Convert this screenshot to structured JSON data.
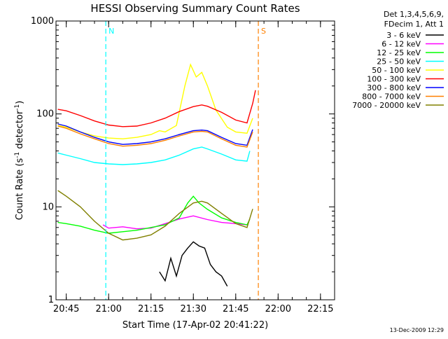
{
  "chart_data": {
    "type": "line",
    "title": "HESSI Observing Summary Count Rates",
    "xlabel": "Start Time (17-Apr-02 20:41:22)",
    "ylabel_parts": [
      "Count Rate (s",
      "-1",
      " detector",
      "-1",
      ")"
    ],
    "y_scale": "log",
    "ylim": [
      1,
      1000
    ],
    "y_ticks": [
      {
        "value": 1,
        "label": "1"
      },
      {
        "value": 10,
        "label": "10"
      },
      {
        "value": 100,
        "label": "100"
      },
      {
        "value": 1000,
        "label": "1000"
      }
    ],
    "xlim": [
      "20:41:22",
      "22:20:00"
    ],
    "x_ticks": [
      {
        "time": "20:45",
        "label": "20:45"
      },
      {
        "time": "21:00",
        "label": "21:00"
      },
      {
        "time": "21:15",
        "label": "21:15"
      },
      {
        "time": "21:30",
        "label": "21:30"
      },
      {
        "time": "21:45",
        "label": "21:45"
      },
      {
        "time": "22:00",
        "label": "22:00"
      },
      {
        "time": "22:15",
        "label": "22:15"
      }
    ],
    "legend_header": [
      "Det 1,3,4,5,6,9,",
      "FDecim 1, Att 1"
    ],
    "legend_placement": "right, outside plot",
    "series": [
      {
        "name": "3 - 6 keV",
        "color": "#000000",
        "points": [
          [
            "21:18",
            2.0
          ],
          [
            "21:20",
            1.6
          ],
          [
            "21:22",
            2.8
          ],
          [
            "21:24",
            1.8
          ],
          [
            "21:26",
            3.0
          ],
          [
            "21:28",
            3.6
          ],
          [
            "21:30",
            4.2
          ],
          [
            "21:32",
            3.8
          ],
          [
            "21:34",
            3.6
          ],
          [
            "21:36",
            2.4
          ],
          [
            "21:38",
            2.0
          ],
          [
            "21:40",
            1.8
          ],
          [
            "21:42",
            1.4
          ]
        ]
      },
      {
        "name": "6 - 12 keV",
        "color": "#ff00ff",
        "points": [
          [
            "20:58",
            6.4
          ],
          [
            "21:00",
            5.9
          ],
          [
            "21:05",
            6.1
          ],
          [
            "21:10",
            5.8
          ],
          [
            "21:15",
            5.9
          ],
          [
            "21:20",
            6.6
          ],
          [
            "21:25",
            7.4
          ],
          [
            "21:30",
            8.0
          ],
          [
            "21:35",
            7.3
          ],
          [
            "21:40",
            6.8
          ],
          [
            "21:45",
            6.6
          ],
          [
            "21:49",
            6.4
          ]
        ]
      },
      {
        "name": "12 - 25 keV",
        "color": "#00ff00",
        "points": [
          [
            "20:42",
            6.8
          ],
          [
            "20:45",
            6.6
          ],
          [
            "20:50",
            6.2
          ],
          [
            "20:55",
            5.6
          ],
          [
            "21:00",
            5.2
          ],
          [
            "21:05",
            5.4
          ],
          [
            "21:10",
            5.6
          ],
          [
            "21:15",
            6.0
          ],
          [
            "21:20",
            6.4
          ],
          [
            "21:25",
            7.6
          ],
          [
            "21:28",
            11
          ],
          [
            "21:30",
            13
          ],
          [
            "21:32",
            11
          ],
          [
            "21:35",
            9.4
          ],
          [
            "21:40",
            7.6
          ],
          [
            "21:45",
            6.8
          ],
          [
            "21:49",
            6.4
          ],
          [
            "21:50",
            7.4
          ]
        ]
      },
      {
        "name": "25 - 50 keV",
        "color": "#00ffff",
        "points": [
          [
            "20:42",
            38
          ],
          [
            "20:45",
            36
          ],
          [
            "20:50",
            33
          ],
          [
            "20:55",
            30
          ],
          [
            "21:00",
            29
          ],
          [
            "21:05",
            28.5
          ],
          [
            "21:10",
            29
          ],
          [
            "21:15",
            30
          ],
          [
            "21:20",
            32
          ],
          [
            "21:25",
            36
          ],
          [
            "21:30",
            42
          ],
          [
            "21:33",
            44
          ],
          [
            "21:35",
            42
          ],
          [
            "21:40",
            37
          ],
          [
            "21:45",
            32
          ],
          [
            "21:49",
            31
          ],
          [
            "21:50",
            40
          ]
        ]
      },
      {
        "name": "50 - 100 keV",
        "color": "#ffff00",
        "points": [
          [
            "20:42",
            75
          ],
          [
            "20:45",
            72
          ],
          [
            "20:50",
            64
          ],
          [
            "20:55",
            58
          ],
          [
            "21:00",
            55
          ],
          [
            "21:05",
            54
          ],
          [
            "21:10",
            56
          ],
          [
            "21:15",
            60
          ],
          [
            "21:18",
            66
          ],
          [
            "21:20",
            64
          ],
          [
            "21:24",
            75
          ],
          [
            "21:27",
            200
          ],
          [
            "21:29",
            340
          ],
          [
            "21:31",
            250
          ],
          [
            "21:33",
            280
          ],
          [
            "21:35",
            200
          ],
          [
            "21:38",
            110
          ],
          [
            "21:42",
            72
          ],
          [
            "21:45",
            64
          ],
          [
            "21:49",
            62
          ],
          [
            "21:51",
            90
          ]
        ]
      },
      {
        "name": "100 - 300 keV",
        "color": "#ff0000",
        "points": [
          [
            "20:42",
            112
          ],
          [
            "20:45",
            108
          ],
          [
            "20:50",
            96
          ],
          [
            "20:55",
            84
          ],
          [
            "21:00",
            76
          ],
          [
            "21:05",
            73
          ],
          [
            "21:10",
            74
          ],
          [
            "21:15",
            80
          ],
          [
            "21:20",
            90
          ],
          [
            "21:25",
            106
          ],
          [
            "21:30",
            120
          ],
          [
            "21:33",
            125
          ],
          [
            "21:35",
            121
          ],
          [
            "21:40",
            104
          ],
          [
            "21:45",
            86
          ],
          [
            "21:49",
            80
          ],
          [
            "21:51",
            130
          ],
          [
            "21:52",
            180
          ]
        ]
      },
      {
        "name": "300 - 800 keV",
        "color": "#0000ff",
        "points": [
          [
            "20:42",
            78
          ],
          [
            "20:45",
            74
          ],
          [
            "20:50",
            64
          ],
          [
            "20:55",
            56
          ],
          [
            "21:00",
            50
          ],
          [
            "21:05",
            47
          ],
          [
            "21:10",
            48
          ],
          [
            "21:15",
            50
          ],
          [
            "21:20",
            54
          ],
          [
            "21:25",
            60
          ],
          [
            "21:30",
            66
          ],
          [
            "21:33",
            67
          ],
          [
            "21:35",
            66
          ],
          [
            "21:40",
            56
          ],
          [
            "21:45",
            48
          ],
          [
            "21:49",
            46
          ],
          [
            "21:51",
            68
          ]
        ]
      },
      {
        "name": "800 - 7000 keV",
        "color": "#ff8000",
        "points": [
          [
            "20:42",
            74
          ],
          [
            "20:45",
            70
          ],
          [
            "20:50",
            61
          ],
          [
            "20:55",
            54
          ],
          [
            "21:00",
            48
          ],
          [
            "21:05",
            45
          ],
          [
            "21:10",
            46
          ],
          [
            "21:15",
            48
          ],
          [
            "21:20",
            52
          ],
          [
            "21:25",
            58
          ],
          [
            "21:30",
            64
          ],
          [
            "21:33",
            65
          ],
          [
            "21:35",
            64
          ],
          [
            "21:40",
            54
          ],
          [
            "21:45",
            46
          ],
          [
            "21:49",
            44
          ],
          [
            "21:51",
            64
          ]
        ]
      },
      {
        "name": "7000 - 20000 keV",
        "color": "#808000",
        "points": [
          [
            "20:42",
            15
          ],
          [
            "20:45",
            13
          ],
          [
            "20:50",
            10
          ],
          [
            "20:55",
            7
          ],
          [
            "21:00",
            5.2
          ],
          [
            "21:05",
            4.4
          ],
          [
            "21:10",
            4.6
          ],
          [
            "21:15",
            5.0
          ],
          [
            "21:20",
            6.2
          ],
          [
            "21:25",
            8.5
          ],
          [
            "21:30",
            11
          ],
          [
            "21:33",
            11.5
          ],
          [
            "21:35",
            11
          ],
          [
            "21:40",
            8.5
          ],
          [
            "21:45",
            6.6
          ],
          [
            "21:49",
            6.0
          ],
          [
            "21:51",
            9.5
          ]
        ]
      }
    ],
    "markers": [
      {
        "label": "N",
        "time": "20:59",
        "color": "#00ffff"
      },
      {
        "label": "S",
        "time": "21:53",
        "color": "#ff8000"
      }
    ],
    "timestamp": "13-Dec-2009 12:29"
  }
}
